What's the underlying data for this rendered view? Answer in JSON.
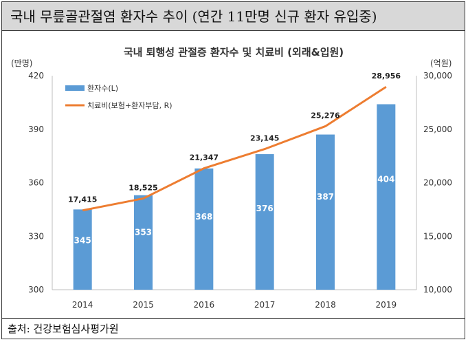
{
  "header": {
    "title": "국내 무릎골관절염 환자수 추이 (연간 11만명 신규 환자 유입중)"
  },
  "footer": {
    "source": "출처: 건강보험심사평가원"
  },
  "colors": {
    "bar": "#5b9bd5",
    "line": "#ed7d31",
    "banner": "#d8d8d8"
  },
  "chart_data": {
    "type": "bar",
    "title": "국내 퇴행성 관절증 환자수 및 치료비 (외래&입원)",
    "ylabel_left": "(만명)",
    "ylabel_right": "(억원)",
    "categories": [
      "2014",
      "2015",
      "2016",
      "2017",
      "2018",
      "2019"
    ],
    "ylim_left": [
      300,
      420
    ],
    "yticks_left": [
      "300",
      "330",
      "360",
      "390",
      "420"
    ],
    "ylim_right": [
      10000,
      30000
    ],
    "yticks_right": [
      "10,000",
      "15,000",
      "20,000",
      "25,000",
      "30,000"
    ],
    "legend_position": "top-left",
    "grid": false,
    "series": [
      {
        "name": "환자수(L)",
        "type": "bar",
        "axis": "left",
        "values": [
          345,
          353,
          368,
          376,
          387,
          404
        ],
        "labels": [
          "345",
          "353",
          "368",
          "376",
          "387",
          "404"
        ]
      },
      {
        "name": "치료비(보험+환자부담, R)",
        "type": "line",
        "axis": "right",
        "values": [
          17415,
          18525,
          21347,
          23145,
          25276,
          28956
        ],
        "labels": [
          "17,415",
          "18,525",
          "21,347",
          "23,145",
          "25,276",
          "28,956"
        ]
      }
    ]
  }
}
